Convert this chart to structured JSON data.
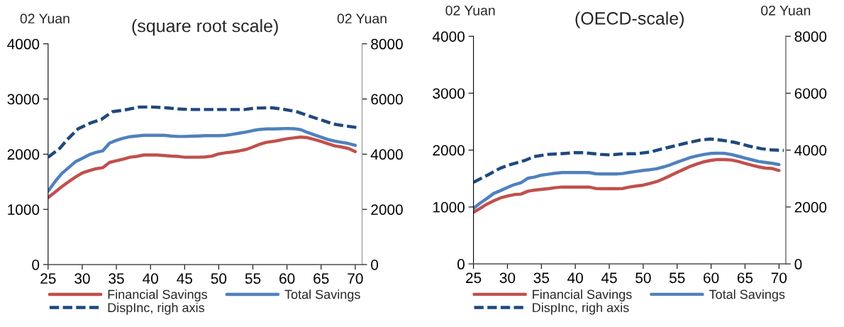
{
  "chart_data": [
    {
      "type": "line",
      "title": "(square root scale)",
      "ylabel": "02 Yuan",
      "y2label": "02 Yuan",
      "xlim": [
        25,
        71
      ],
      "xticks": [
        25,
        30,
        35,
        40,
        45,
        50,
        55,
        60,
        65,
        70
      ],
      "ylim": [
        0,
        4000
      ],
      "yticks": [
        0,
        1000,
        2000,
        3000,
        4000
      ],
      "y2lim": [
        0,
        8000
      ],
      "y2ticks": [
        0,
        2000,
        4000,
        6000,
        8000
      ],
      "legend": "bottom",
      "grid": false,
      "series": [
        {
          "name": "Financial Savings",
          "color": "#c0504d",
          "line_style": "solid",
          "x": [
            25,
            26,
            27,
            28,
            29,
            30,
            31,
            32,
            33,
            34,
            35,
            36,
            37,
            38,
            39,
            40,
            41,
            42,
            43,
            44,
            45,
            46,
            47,
            48,
            49,
            50,
            51,
            52,
            53,
            54,
            55,
            56,
            57,
            58,
            59,
            60,
            61,
            62,
            63,
            64,
            65,
            66,
            67,
            68,
            69,
            70
          ],
          "values": [
            1215,
            1310,
            1410,
            1500,
            1585,
            1660,
            1700,
            1735,
            1755,
            1850,
            1880,
            1910,
            1945,
            1960,
            1985,
            1985,
            1985,
            1975,
            1965,
            1960,
            1945,
            1945,
            1945,
            1950,
            1965,
            2005,
            2025,
            2040,
            2060,
            2085,
            2130,
            2180,
            2215,
            2232,
            2255,
            2279,
            2295,
            2309,
            2300,
            2266,
            2232,
            2190,
            2151,
            2130,
            2104,
            2045
          ]
        },
        {
          "name": "Total Savings",
          "color": "#4f81bd",
          "line_style": "solid",
          "x": [
            25,
            26,
            27,
            28,
            29,
            30,
            31,
            32,
            33,
            34,
            35,
            36,
            37,
            38,
            39,
            40,
            41,
            42,
            43,
            44,
            45,
            46,
            47,
            48,
            49,
            50,
            51,
            52,
            53,
            54,
            55,
            56,
            57,
            58,
            59,
            60,
            61,
            62,
            63,
            64,
            65,
            66,
            67,
            68,
            69,
            70
          ],
          "values": [
            1329,
            1500,
            1649,
            1755,
            1862,
            1925,
            1989,
            2032,
            2060,
            2200,
            2250,
            2290,
            2317,
            2330,
            2343,
            2343,
            2343,
            2343,
            2330,
            2321,
            2321,
            2325,
            2330,
            2335,
            2335,
            2335,
            2343,
            2360,
            2381,
            2402,
            2428,
            2449,
            2458,
            2458,
            2462,
            2466,
            2462,
            2445,
            2394,
            2351,
            2309,
            2266,
            2236,
            2215,
            2194,
            2160
          ]
        },
        {
          "name": "DispInc, righ axis",
          "color": "#1f497d",
          "line_style": "dashed",
          "axis": "y2",
          "x": [
            25,
            26.7,
            28,
            29.4,
            31.2,
            32.8,
            34.4,
            36.2,
            38.4,
            40.2,
            42.3,
            44.1,
            45.9,
            47.7,
            49.9,
            51.7,
            53.8,
            55.3,
            57.8,
            59.2,
            61.4,
            63.2,
            65,
            66.8,
            68.6,
            70.5
          ],
          "values": [
            3890,
            4210,
            4580,
            4920,
            5130,
            5260,
            5540,
            5600,
            5710,
            5710,
            5680,
            5640,
            5620,
            5620,
            5620,
            5620,
            5620,
            5670,
            5680,
            5640,
            5540,
            5390,
            5240,
            5090,
            5020,
            4960
          ]
        }
      ]
    },
    {
      "type": "line",
      "title": "(OECD-scale)",
      "ylabel": "02 Yuan",
      "y2label": "02 Yuan",
      "xlim": [
        25,
        71
      ],
      "xticks": [
        25,
        30,
        35,
        40,
        45,
        50,
        55,
        60,
        65,
        70
      ],
      "ylim": [
        0,
        4000
      ],
      "yticks": [
        0,
        1000,
        2000,
        3000,
        4000
      ],
      "y2lim": [
        0,
        8000
      ],
      "y2ticks": [
        0,
        2000,
        4000,
        6000,
        8000
      ],
      "legend": "bottom",
      "grid": false,
      "series": [
        {
          "name": "Financial Savings",
          "color": "#c0504d",
          "line_style": "solid",
          "x": [
            25,
            26,
            27,
            28,
            29,
            30,
            31,
            32,
            33,
            34,
            35,
            36,
            37,
            38,
            39,
            40,
            41,
            42,
            43,
            44,
            45,
            46,
            47,
            48,
            49,
            50,
            51,
            52,
            53,
            54,
            55,
            56,
            57,
            58,
            59,
            60,
            61,
            62,
            63,
            64,
            65,
            66,
            67,
            68,
            69,
            70
          ],
          "values": [
            906,
            977,
            1052,
            1110,
            1160,
            1193,
            1218,
            1227,
            1277,
            1297,
            1310,
            1322,
            1339,
            1351,
            1351,
            1351,
            1351,
            1351,
            1326,
            1322,
            1322,
            1322,
            1326,
            1351,
            1368,
            1385,
            1414,
            1447,
            1497,
            1551,
            1609,
            1663,
            1717,
            1759,
            1796,
            1821,
            1834,
            1834,
            1825,
            1800,
            1767,
            1734,
            1705,
            1684,
            1676,
            1642
          ]
        },
        {
          "name": "Total Savings",
          "color": "#4f81bd",
          "line_style": "solid",
          "x": [
            25,
            26,
            27,
            28,
            29,
            30,
            31,
            32,
            33,
            34,
            35,
            36,
            37,
            38,
            39,
            40,
            41,
            42,
            43,
            44,
            45,
            46,
            47,
            48,
            49,
            50,
            51,
            52,
            53,
            54,
            55,
            56,
            57,
            58,
            59,
            60,
            61,
            62,
            63,
            64,
            65,
            66,
            67,
            68,
            69,
            70
          ],
          "values": [
            977,
            1069,
            1152,
            1239,
            1289,
            1343,
            1393,
            1426,
            1505,
            1526,
            1559,
            1576,
            1593,
            1605,
            1605,
            1605,
            1605,
            1605,
            1584,
            1580,
            1580,
            1580,
            1588,
            1609,
            1626,
            1642,
            1655,
            1672,
            1705,
            1742,
            1788,
            1830,
            1871,
            1900,
            1925,
            1942,
            1946,
            1942,
            1921,
            1892,
            1859,
            1830,
            1800,
            1784,
            1767,
            1746
          ]
        },
        {
          "name": "DispInc, righ axis",
          "color": "#1f497d",
          "line_style": "dashed",
          "axis": "y2",
          "x": [
            25,
            26.9,
            29,
            30.4,
            32.5,
            33.9,
            36,
            37.7,
            39.8,
            41.2,
            43.7,
            45.1,
            47.1,
            48.9,
            51,
            52.4,
            54.5,
            56.2,
            58.3,
            59.9,
            61.8,
            63.5,
            65.6,
            67.4,
            68.8,
            70.7
          ],
          "values": [
            2870,
            3100,
            3370,
            3490,
            3630,
            3770,
            3850,
            3870,
            3910,
            3910,
            3850,
            3830,
            3870,
            3870,
            3930,
            4020,
            4140,
            4240,
            4350,
            4390,
            4340,
            4270,
            4140,
            4050,
            4010,
            3990
          ]
        }
      ]
    }
  ]
}
